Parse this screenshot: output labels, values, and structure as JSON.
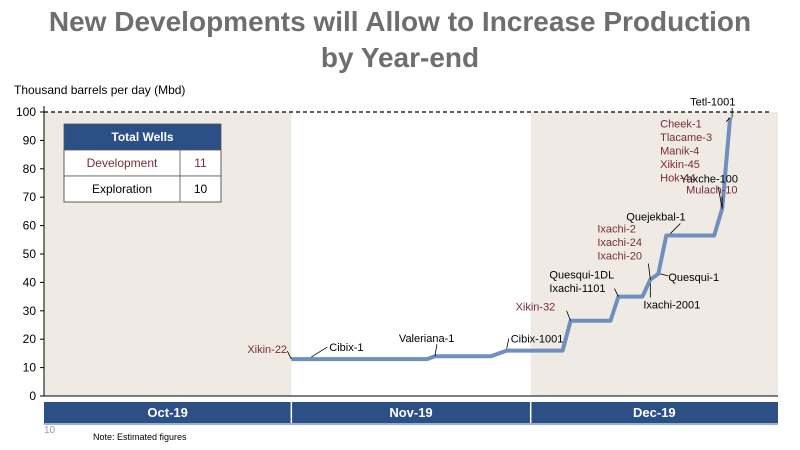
{
  "title_line1": "New Developments will Allow to Increase Production",
  "title_line2": "by Year-end",
  "page_number": "10",
  "note": "Note: Estimated figures",
  "table": {
    "header": "Total Wells",
    "rows": [
      {
        "label": "Development",
        "value": "11"
      },
      {
        "label": "Exploration",
        "value": "10"
      }
    ]
  },
  "colors": {
    "line": "#6f8fbd",
    "band": "#efebe4",
    "month_bar": "#2c4f86",
    "label_dark": "#000000",
    "label_accent": "#7a2a3a"
  },
  "chart_data": {
    "type": "line",
    "ylabel": "Thousand barrels per day (Mbd)",
    "ylim": [
      0,
      100
    ],
    "yticks": [
      0,
      10,
      20,
      30,
      40,
      50,
      60,
      70,
      80,
      90,
      100
    ],
    "target_line": 100,
    "months": [
      "Oct-19",
      "Nov-19",
      "Dec-19"
    ],
    "x_range": [
      "2019-10-01",
      "2020-01-01"
    ],
    "series": [
      {
        "points": [
          {
            "x": "2019-11-01",
            "y": 13
          },
          {
            "x": "2019-11-18",
            "y": 13
          },
          {
            "x": "2019-11-19",
            "y": 14
          },
          {
            "x": "2019-11-26",
            "y": 14
          },
          {
            "x": "2019-11-28",
            "y": 16
          },
          {
            "x": "2019-12-05",
            "y": 16
          },
          {
            "x": "2019-12-06",
            "y": 26.5
          },
          {
            "x": "2019-12-11",
            "y": 26.5
          },
          {
            "x": "2019-12-12",
            "y": 35
          },
          {
            "x": "2019-12-15",
            "y": 35
          },
          {
            "x": "2019-12-16",
            "y": 41
          },
          {
            "x": "2019-12-17",
            "y": 43
          },
          {
            "x": "2019-12-18",
            "y": 56.5
          },
          {
            "x": "2019-12-24",
            "y": 56.5
          },
          {
            "x": "2019-12-25",
            "y": 66
          },
          {
            "x": "2019-12-26",
            "y": 98
          }
        ]
      }
    ],
    "annotations": [
      {
        "text": [
          "Xikin-22"
        ],
        "style": "accent",
        "x": "2019-11-01",
        "y": 13
      },
      {
        "text": [
          "Cibix-1"
        ],
        "style": "dark",
        "x": "2019-11-03",
        "y": 13
      },
      {
        "text": [
          "Valeriana-1"
        ],
        "style": "dark",
        "x": "2019-11-19",
        "y": 14
      },
      {
        "text": [
          "Cibix-1001"
        ],
        "style": "dark",
        "x": "2019-11-28",
        "y": 16
      },
      {
        "text": [
          "Xikin-32"
        ],
        "style": "accent",
        "x": "2019-12-06",
        "y": 26.5
      },
      {
        "text": [
          "Quesqui-1DL",
          "Ixachi-1101"
        ],
        "style": "dark",
        "x": "2019-12-12",
        "y": 35
      },
      {
        "text": [
          "Ixachi-2",
          "Ixachi-24",
          "Ixachi-20"
        ],
        "style": "accent",
        "x": "2019-12-16",
        "y": 41
      },
      {
        "text": [
          "Quesqui-1"
        ],
        "style": "dark",
        "x": "2019-12-17",
        "y": 43
      },
      {
        "text": [
          "Ixachi-2001"
        ],
        "style": "dark",
        "x": "2019-12-16",
        "y": 41
      },
      {
        "text": [
          "Quejekbal-1"
        ],
        "style": "dark",
        "x": "2019-12-18",
        "y": 56.5
      },
      {
        "text": [
          "Yaxche-100"
        ],
        "style": "dark",
        "x": "2019-12-25",
        "y": 66
      },
      {
        "text": [
          "Mulach-10"
        ],
        "style": "accent",
        "x": "2019-12-25",
        "y": 66
      },
      {
        "text": [
          "Tetl-1001"
        ],
        "style": "dark",
        "x": "2019-12-26",
        "y": 98
      },
      {
        "text": [
          "Cheek-1",
          "Tlacame-3",
          "Manik-4",
          "Xikin-45",
          "Hok-44"
        ],
        "style": "accent",
        "x": "2019-12-26",
        "y": 98
      }
    ]
  }
}
